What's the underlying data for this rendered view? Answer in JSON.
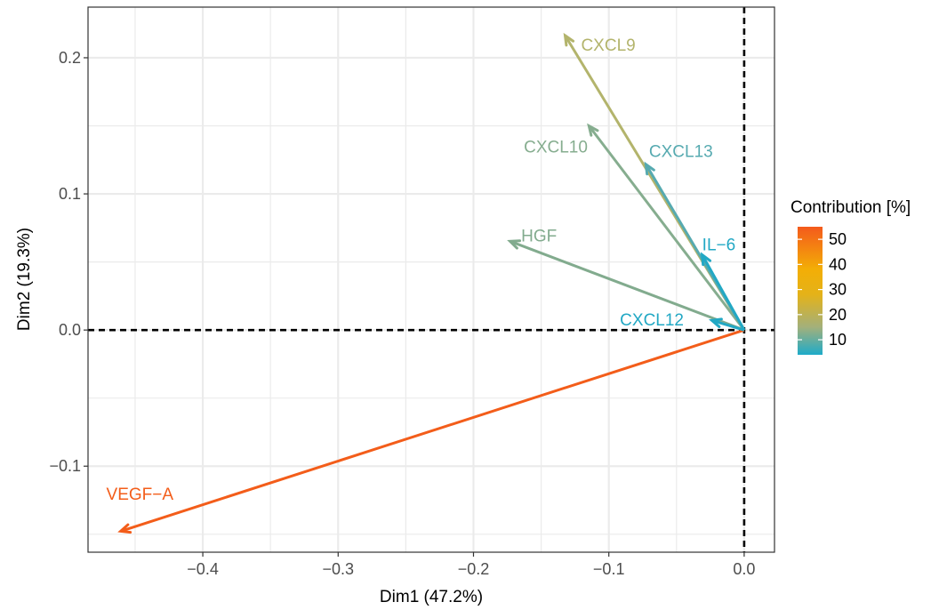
{
  "chart_data": {
    "type": "vector-plot",
    "xlabel": "Dim1 (47.2%)",
    "ylabel": "Dim2 (19.3%)",
    "xlim": [
      -0.4848,
      0.0224
    ],
    "ylim": [
      -0.1632,
      0.2372
    ],
    "x_ticks": [
      -0.4,
      -0.3,
      -0.2,
      -0.1,
      0.0
    ],
    "x_tick_labels": [
      "−0.4",
      "−0.3",
      "−0.2",
      "−0.1",
      "0.0"
    ],
    "y_ticks": [
      -0.1,
      0.0,
      0.1,
      0.2
    ],
    "y_tick_labels": [
      "−0.1",
      "0.0",
      "0.1",
      "0.2"
    ],
    "grid": true,
    "reference_lines": {
      "x": 0,
      "y": 0,
      "style": "dashed"
    },
    "vectors": [
      {
        "name": "VEGF−A",
        "x": -0.4607,
        "y": -0.1478,
        "contribution": 55,
        "color": "#f35d1a",
        "label_x": -0.4465,
        "label_y": -0.1211
      },
      {
        "name": "CXCL9",
        "x": -0.1323,
        "y": 0.2163,
        "contribution": 17,
        "color": "#b3b46c",
        "label_x": -0.1004,
        "label_y": 0.2089
      },
      {
        "name": "CXCL10",
        "x": -0.1147,
        "y": 0.15,
        "contribution": 12,
        "color": "#86ad8f",
        "label_x": -0.1392,
        "label_y": 0.1339
      },
      {
        "name": "CXCL13",
        "x": -0.0726,
        "y": 0.1217,
        "contribution": 8,
        "color": "#56aab0",
        "label_x": -0.0467,
        "label_y": 0.1308
      },
      {
        "name": "HGF",
        "x": -0.173,
        "y": 0.0652,
        "contribution": 13,
        "color": "#82ab8e",
        "label_x": -0.1516,
        "label_y": 0.0687
      },
      {
        "name": "IL−6",
        "x": -0.031,
        "y": 0.0552,
        "contribution": 4,
        "color": "#22a8c4",
        "label_x": -0.0187,
        "label_y": 0.062
      },
      {
        "name": "CXCL12",
        "x": -0.0239,
        "y": 0.0071,
        "contribution": 4,
        "color": "#22a8c4",
        "label_x": -0.0682,
        "label_y": 0.0071
      }
    ],
    "legend": {
      "title": "Contribution [%]",
      "placement": "right",
      "range": [
        4,
        55
      ],
      "tick_values": [
        50,
        40,
        30,
        20,
        10
      ],
      "tick_labels": [
        "50",
        "40",
        "30",
        "20",
        "10"
      ],
      "gradient": [
        {
          "value": 4,
          "color": "#1eabc9"
        },
        {
          "value": 15,
          "color": "#a3b07b"
        },
        {
          "value": 28,
          "color": "#e4b219"
        },
        {
          "value": 38,
          "color": "#f3ae06"
        },
        {
          "value": 55,
          "color": "#f45a1c"
        }
      ]
    }
  }
}
